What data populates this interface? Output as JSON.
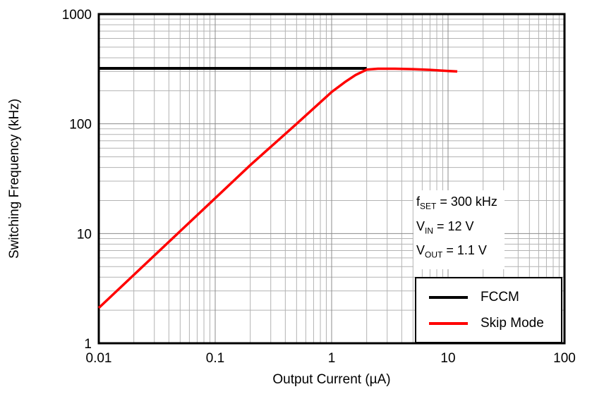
{
  "chart_data": {
    "type": "line",
    "title": "",
    "xlabel": "Output Current (µA)",
    "ylabel": "Switching Frequency (kHz)",
    "xscale": "log",
    "yscale": "log",
    "xlim": [
      0.01,
      100
    ],
    "ylim": [
      1,
      1000
    ],
    "x_ticks": [
      0.01,
      0.1,
      1,
      10,
      100
    ],
    "x_tick_labels": [
      "0.01",
      "0.1",
      "1",
      "10",
      "100"
    ],
    "y_ticks": [
      1,
      10,
      100,
      1000
    ],
    "y_tick_labels": [
      "1",
      "10",
      "100",
      "1000"
    ],
    "grid": true,
    "grid_minor_color": "#b3b3b3",
    "grid_major_color": "#8c8c8c",
    "frame_color": "#000000",
    "legend_position": "lower right",
    "series": [
      {
        "name": "FCCM",
        "color": "#000000",
        "width": 4,
        "x": [
          0.01,
          2.0
        ],
        "y": [
          320,
          320
        ]
      },
      {
        "name": "Skip Mode",
        "color": "#ff0000",
        "width": 3.5,
        "x": [
          0.01,
          0.02,
          0.05,
          0.1,
          0.2,
          0.5,
          1.0,
          1.3,
          1.6,
          2.0,
          2.5,
          3.5,
          5,
          7,
          9,
          12
        ],
        "y": [
          2.1,
          4.2,
          10.5,
          21,
          42,
          100,
          195,
          240,
          278,
          312,
          318,
          318,
          315,
          310,
          305,
          300
        ]
      }
    ],
    "annotations": [
      {
        "pre": "f",
        "sub": "SET",
        "post": " = 300 kHz"
      },
      {
        "pre": "V",
        "sub": "IN",
        "post": " = 12 V"
      },
      {
        "pre": "V",
        "sub": "OUT",
        "post": " = 1.1 V"
      }
    ]
  }
}
